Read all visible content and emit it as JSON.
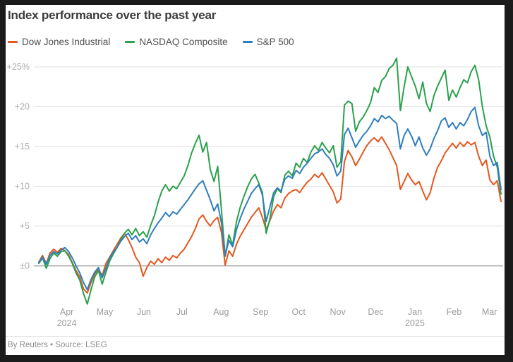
{
  "header": {
    "title": "Index performance over the past year"
  },
  "legend": {
    "items": [
      {
        "label": "Dow Jones Industrial",
        "color": "#e4571e"
      },
      {
        "label": "NASDAQ Composite",
        "color": "#2aa14b"
      },
      {
        "label": "S&P 500",
        "color": "#2f7ebd"
      }
    ]
  },
  "footer": {
    "attribution": "By Reuters • Source: LSEG"
  },
  "colors": {
    "frame": "#1b1b1b",
    "card": "#ffffff",
    "grid": "#e2e2e2",
    "zero_line": "#9e9e9e",
    "y_tick_text": "#adadad",
    "x_tick_text": "#9b9b9b",
    "title_text": "#3b3b3b",
    "legend_text": "#4f4f4f",
    "footer_text": "#8c8c8c"
  },
  "chart_data": {
    "type": "line",
    "title": "Index performance over the past year",
    "unit": "percent change",
    "grid": "horizontal",
    "legend_position": "top-left",
    "ylim": [
      -6.5,
      27
    ],
    "yticks": [
      {
        "label": "+25%",
        "value": 25
      },
      {
        "label": "+20",
        "value": 20
      },
      {
        "label": "+15",
        "value": 15
      },
      {
        "label": "+10",
        "value": 10
      },
      {
        "label": "+5",
        "value": 5
      },
      {
        "label": "±0",
        "value": 0
      }
    ],
    "xticks": [
      {
        "label": "Apr",
        "sublabel": "2024",
        "f": 0.0605
      },
      {
        "label": "May",
        "f": 0.1427
      },
      {
        "label": "Jun",
        "f": 0.2274
      },
      {
        "label": "Jul",
        "f": 0.3097
      },
      {
        "label": "Aug",
        "f": 0.3944
      },
      {
        "label": "Sep",
        "f": 0.4798
      },
      {
        "label": "Oct",
        "f": 0.5621
      },
      {
        "label": "Nov",
        "f": 0.6468
      },
      {
        "label": "Dec",
        "f": 0.729
      },
      {
        "label": "Jan",
        "sublabel": "2025",
        "f": 0.8137
      },
      {
        "label": "Feb",
        "f": 0.8984
      },
      {
        "label": "Mar",
        "f": 0.975
      }
    ],
    "x_range_note": "past year, late Mar 2024 to early Mar 2025, points evenly spaced",
    "series": [
      {
        "name": "Dow Jones Industrial",
        "color": "#e4571e",
        "values": [
          0.5,
          1.3,
          0.3,
          1.6,
          2.1,
          1.7,
          2.2,
          1.9,
          1.4,
          0.4,
          -0.6,
          -1.4,
          -2.9,
          -3.4,
          -2.1,
          -1.0,
          -0.5,
          -1.2,
          0.3,
          1.1,
          1.9,
          2.7,
          3.5,
          4.1,
          3.3,
          2.3,
          1.1,
          0.4,
          -1.3,
          -0.2,
          0.6,
          0.2,
          0.9,
          0.4,
          1.1,
          0.7,
          1.3,
          1.0,
          1.6,
          2.1,
          2.9,
          3.7,
          4.7,
          5.9,
          6.4,
          5.6,
          5.0,
          5.7,
          6.1,
          4.2,
          0.1,
          1.9,
          1.2,
          2.7,
          3.7,
          4.5,
          5.3,
          6.1,
          6.7,
          7.3,
          6.1,
          4.5,
          5.7,
          6.9,
          7.7,
          7.3,
          8.5,
          9.1,
          9.4,
          9.6,
          9.2,
          9.9,
          10.5,
          10.9,
          11.5,
          11.1,
          11.7,
          10.9,
          10.1,
          9.3,
          7.9,
          8.4,
          13.1,
          14.5,
          13.7,
          12.6,
          13.4,
          14.3,
          15.1,
          15.7,
          16.1,
          15.6,
          16.2,
          15.4,
          14.6,
          13.6,
          12.6,
          9.6,
          10.6,
          11.6,
          10.8,
          10.2,
          10.6,
          9.4,
          8.3,
          9.2,
          11.0,
          12.4,
          13.2,
          14.2,
          14.8,
          15.4,
          14.8,
          15.5,
          15.0,
          15.6,
          15.2,
          15.5,
          13.8,
          12.6,
          13.3,
          10.8,
          10.2,
          10.7,
          8.1
        ]
      },
      {
        "name": "NASDAQ Composite",
        "color": "#2aa14b",
        "values": [
          0.3,
          1.0,
          -0.3,
          0.9,
          1.6,
          1.2,
          1.8,
          1.9,
          1.2,
          0.3,
          -0.9,
          -1.8,
          -3.5,
          -4.8,
          -3.0,
          -1.4,
          -0.6,
          -2.3,
          -0.8,
          0.6,
          1.5,
          2.3,
          3.3,
          4.1,
          4.6,
          3.9,
          4.7,
          3.8,
          4.3,
          3.6,
          5.1,
          6.3,
          8.0,
          9.4,
          10.2,
          9.4,
          10.0,
          9.7,
          10.5,
          11.3,
          12.6,
          14.2,
          15.4,
          16.4,
          14.3,
          15.5,
          12.1,
          10.6,
          12.5,
          7.1,
          1.2,
          3.9,
          2.6,
          5.5,
          7.3,
          8.7,
          9.9,
          10.9,
          11.5,
          10.4,
          9.2,
          4.1,
          5.9,
          8.7,
          9.7,
          9.2,
          11.4,
          11.9,
          11.3,
          12.9,
          12.4,
          13.5,
          13.0,
          14.3,
          15.1,
          14.5,
          15.5,
          14.8,
          14.2,
          15.1,
          12.4,
          13.1,
          20.2,
          20.7,
          20.4,
          16.9,
          18.1,
          18.7,
          19.5,
          20.5,
          22.4,
          21.8,
          23.3,
          23.8,
          24.8,
          25.2,
          26.1,
          19.5,
          22.5,
          25.0,
          23.8,
          22.6,
          21.0,
          23.1,
          20.4,
          19.4,
          21.4,
          22.6,
          23.6,
          24.6,
          20.8,
          22.1,
          21.2,
          22.4,
          23.4,
          23.0,
          24.4,
          25.2,
          23.4,
          20.0,
          17.6,
          16.2,
          13.8,
          12.4,
          9.0
        ]
      },
      {
        "name": "S&P 500",
        "color": "#2f7ebd",
        "values": [
          0.4,
          1.1,
          0.2,
          1.3,
          1.8,
          1.5,
          2.0,
          2.3,
          1.8,
          1.0,
          0.0,
          -0.9,
          -2.1,
          -3.0,
          -1.7,
          -0.8,
          -0.2,
          -1.5,
          -0.3,
          1.0,
          1.7,
          2.3,
          3.1,
          3.7,
          4.1,
          3.3,
          3.8,
          3.0,
          3.4,
          2.8,
          3.9,
          4.7,
          5.4,
          6.0,
          6.7,
          6.2,
          6.8,
          6.5,
          7.1,
          7.7,
          8.3,
          9.0,
          9.7,
          10.3,
          10.7,
          9.5,
          8.3,
          6.9,
          7.8,
          5.4,
          1.3,
          3.2,
          2.4,
          4.5,
          5.9,
          7.1,
          8.1,
          9.1,
          9.7,
          10.2,
          8.9,
          5.6,
          7.4,
          9.2,
          9.8,
          9.4,
          10.9,
          11.3,
          11.0,
          12.0,
          11.6,
          12.4,
          12.9,
          13.5,
          14.1,
          14.3,
          14.7,
          14.0,
          13.5,
          12.7,
          11.3,
          11.9,
          16.5,
          17.3,
          16.1,
          14.9,
          15.7,
          16.4,
          16.9,
          17.6,
          18.5,
          18.1,
          18.9,
          18.5,
          18.8,
          18.3,
          17.9,
          14.7,
          16.4,
          17.2,
          16.3,
          15.1,
          16.2,
          14.8,
          13.9,
          14.7,
          16.0,
          17.0,
          18.2,
          18.6,
          17.4,
          18.0,
          17.2,
          18.0,
          17.6,
          18.4,
          19.4,
          19.9,
          17.6,
          16.4,
          16.8,
          13.8,
          12.6,
          13.0,
          9.6
        ]
      }
    ]
  }
}
